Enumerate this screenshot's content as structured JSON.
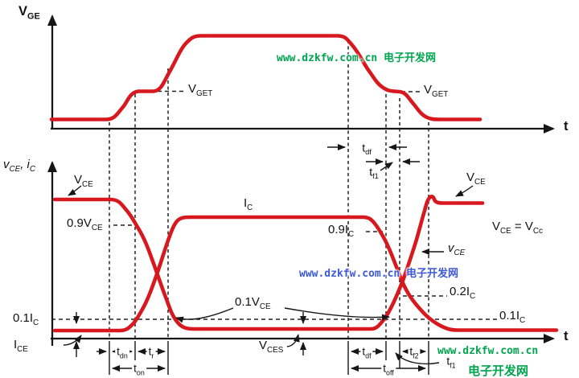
{
  "colors": {
    "waveform_red": "#d8181f",
    "line_black": "#161616",
    "watermark_green": "#00a54f",
    "watermark_blue": "#3d59d4",
    "background": "#ffffff"
  },
  "top_plot": {
    "y_label": "V_GE",
    "t_label": "t",
    "vget_left": "V_GET",
    "vget_right": "V_GET"
  },
  "mid_annotations": {
    "t_df": "t_df",
    "t_f1": "t_f1"
  },
  "bottom_plot": {
    "y_label": "v_CE, i_C",
    "t_label": "t",
    "vce_left": "V_CE",
    "vce_09": "0.9V_CE",
    "ic": "I_C",
    "ic_09": "0.9I_C",
    "vce_01": "0.1V_CE",
    "vces": "V_CES",
    "ic_01_left": "0.1I_C",
    "ice": "I_CE",
    "ic_02": "0.2I_C",
    "ic_01_right": "0.1I_C",
    "vce_right": "V_CE",
    "vce_small": "v_CE",
    "vce_equation": "V_CE = V_Cc"
  },
  "timing": {
    "t_dn": "t_dn",
    "t_r": "t_r",
    "t_on": "t_on",
    "t_df": "t_df",
    "t_f2": "t_f2",
    "t_f1": "t_f1",
    "t_off": "t_off"
  },
  "watermarks": {
    "top": "www.dzkfw.com.cn 电子开发网",
    "middle": "www.dzkfw.com.cn 电子开发网",
    "bottom_url": "www.dzkfw.com.cn",
    "bottom_site": "电子开发网"
  }
}
